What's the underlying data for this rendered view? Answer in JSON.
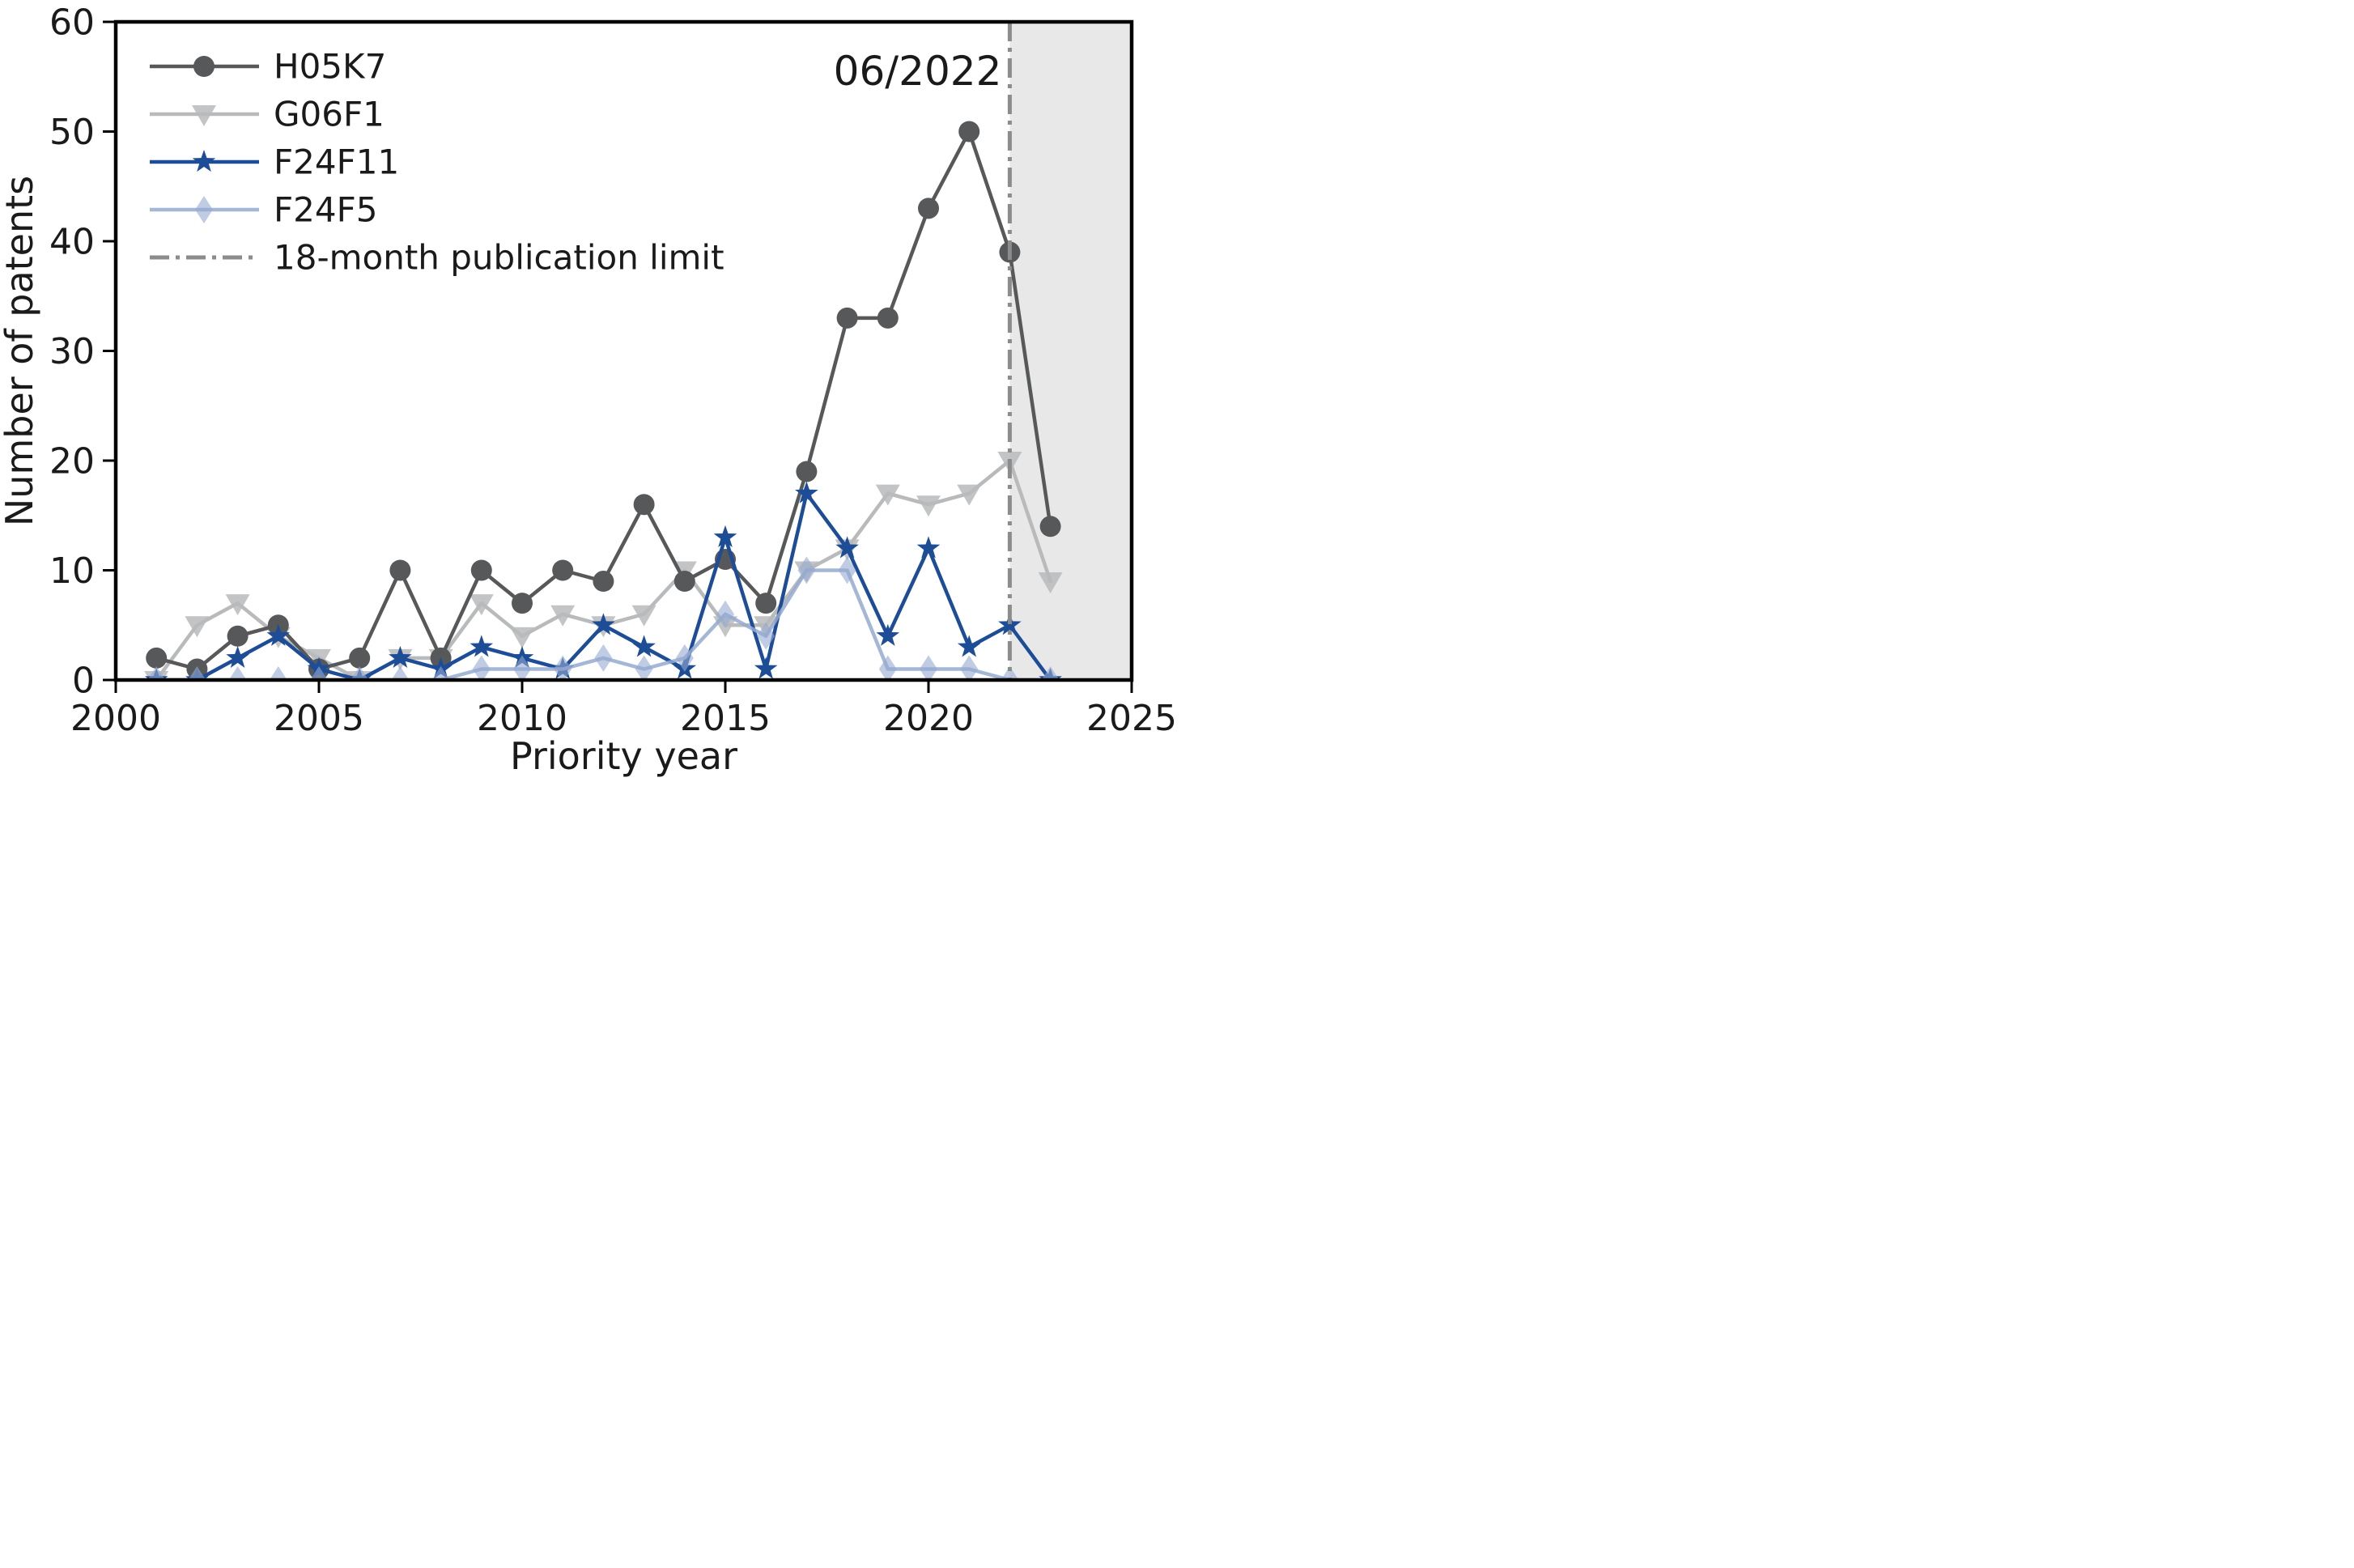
{
  "annotation": {
    "label": "06/2022"
  },
  "axes": {
    "xlabel": "Priority year",
    "ylabel": "Number of patents"
  },
  "legend": {
    "items": [
      {
        "label": "H05K7"
      },
      {
        "label": "G06F1"
      },
      {
        "label": "F24F11"
      },
      {
        "label": "F24F5"
      },
      {
        "label": "18-month publication limit"
      }
    ]
  },
  "chart_data": {
    "type": "line",
    "title": "",
    "xlabel": "Priority year",
    "ylabel": "Number of patents",
    "xlim": [
      2000,
      2025
    ],
    "ylim": [
      0,
      60
    ],
    "x_ticks": [
      2000,
      2005,
      2010,
      2015,
      2020,
      2025
    ],
    "y_ticks": [
      0,
      10,
      20,
      30,
      40,
      50,
      60
    ],
    "grid": false,
    "legend_position": "upper-left",
    "annotation": "06/2022",
    "x": [
      2001,
      2002,
      2003,
      2004,
      2005,
      2006,
      2007,
      2008,
      2009,
      2010,
      2011,
      2012,
      2013,
      2014,
      2015,
      2016,
      2017,
      2018,
      2019,
      2020,
      2021,
      2022,
      2023
    ],
    "series": [
      {
        "name": "H05K7",
        "marker": "circle",
        "color": "#57585a",
        "marker_opacity": 1.0,
        "values": [
          2,
          1,
          4,
          5,
          1,
          2,
          10,
          2,
          10,
          7,
          10,
          9,
          16,
          9,
          11,
          7,
          19,
          33,
          33,
          43,
          50,
          39,
          14
        ]
      },
      {
        "name": "G06F1",
        "marker": "triangle-down",
        "color": "#b9babc",
        "marker_opacity": 0.85,
        "values": [
          0,
          5,
          7,
          4,
          2,
          0,
          2,
          2,
          7,
          4,
          6,
          5,
          6,
          10,
          5,
          5,
          10,
          12,
          17,
          16,
          17,
          20,
          9
        ]
      },
      {
        "name": "F24F11",
        "marker": "star",
        "color": "#1e4d97",
        "marker_opacity": 1.0,
        "values": [
          0,
          0,
          2,
          4,
          1,
          0,
          2,
          1,
          3,
          2,
          1,
          5,
          3,
          1,
          13,
          1,
          17,
          12,
          4,
          12,
          3,
          5,
          0
        ]
      },
      {
        "name": "F24F5",
        "marker": "diamond",
        "color": "#94aad0",
        "marker_opacity": 0.6,
        "values": [
          0,
          0,
          0,
          0,
          0,
          0,
          0,
          0,
          1,
          1,
          1,
          2,
          1,
          2,
          6,
          4,
          10,
          10,
          1,
          1,
          1,
          0,
          0
        ]
      }
    ],
    "reference_line": {
      "label": "18-month publication limit",
      "x": 2022,
      "style": "dash-dot",
      "color": "#8c8c8c"
    },
    "shaded_region": {
      "from_x": 2022,
      "to_x": 2025,
      "color": "#d9d9d9"
    }
  }
}
